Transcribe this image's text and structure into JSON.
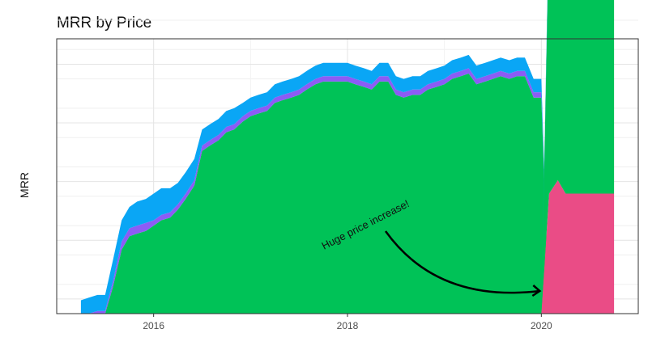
{
  "chart_data": {
    "type": "area",
    "stacked": true,
    "title": "MRR by Price",
    "xlabel": "",
    "ylabel": "MRR",
    "xlim": [
      2015.0,
      2021.0
    ],
    "ylim": [
      0,
      100
    ],
    "x_ticks": [
      2016,
      2018,
      2020
    ],
    "y_ticks_labeled": false,
    "grid": true,
    "legend": "none",
    "annotation": {
      "text": "Huge price increase!",
      "arrow_to": [
        2020.0,
        10
      ]
    },
    "x": [
      2015.25,
      2015.33,
      2015.42,
      2015.5,
      2015.58,
      2015.67,
      2015.75,
      2015.83,
      2015.92,
      2016.0,
      2016.08,
      2016.17,
      2016.25,
      2016.33,
      2016.42,
      2016.5,
      2016.58,
      2016.67,
      2016.75,
      2016.83,
      2016.92,
      2017.0,
      2017.08,
      2017.17,
      2017.25,
      2017.33,
      2017.42,
      2017.5,
      2017.58,
      2017.67,
      2017.75,
      2017.83,
      2017.92,
      2018.0,
      2018.08,
      2018.17,
      2018.25,
      2018.33,
      2018.42,
      2018.5,
      2018.58,
      2018.67,
      2018.75,
      2018.83,
      2018.92,
      2019.0,
      2019.08,
      2019.17,
      2019.25,
      2019.33,
      2019.42,
      2019.5,
      2019.58,
      2019.67,
      2019.75,
      2019.83,
      2019.92,
      2020.0,
      2020.08,
      2020.17,
      2020.25,
      2020.33,
      2020.42,
      2020.5,
      2020.58,
      2020.67,
      2020.75
    ],
    "series": [
      {
        "color": "#ea4c86",
        "values": [
          0,
          0,
          0,
          0,
          0,
          0,
          0,
          0,
          0,
          0,
          0,
          0,
          0,
          0,
          0,
          0,
          0,
          0,
          0,
          0,
          0,
          0,
          0,
          0,
          0,
          0,
          0,
          0,
          0,
          0,
          0,
          0,
          0,
          0,
          0,
          0,
          0,
          0,
          0,
          0,
          0,
          0,
          0,
          0,
          0,
          0,
          0,
          0,
          0,
          0,
          0,
          0,
          0,
          0,
          0,
          0,
          0,
          0,
          0,
          0,
          0,
          0,
          0,
          0,
          0,
          0,
          0
        ]
      },
      {
        "color": "#00c257",
        "values": [
          0,
          0,
          0,
          0,
          10,
          24,
          29,
          30,
          31,
          33,
          35,
          36,
          39,
          43,
          48,
          61,
          63,
          65,
          68,
          69,
          72,
          74,
          75,
          76,
          79,
          80,
          81,
          82,
          84,
          86,
          87,
          87,
          87,
          87,
          86,
          85,
          84,
          87,
          87,
          82,
          81,
          82,
          82,
          84,
          85,
          86,
          88,
          89,
          90,
          86,
          87,
          88,
          89,
          88,
          89,
          89,
          81,
          81,
          0,
          0,
          0,
          0,
          0,
          0,
          0,
          0,
          0
        ]
      },
      {
        "color": "#8c5cf5",
        "values": [
          0,
          0,
          1,
          1,
          2,
          3,
          3,
          3,
          3,
          2,
          2,
          2,
          2,
          2,
          2,
          2,
          2,
          2,
          2,
          2,
          2,
          2,
          2,
          2,
          2,
          2,
          2,
          2,
          2,
          2,
          2,
          2,
          2,
          2,
          2,
          2,
          2,
          2,
          2,
          2,
          2,
          2,
          2,
          2,
          2,
          2,
          2,
          2,
          2,
          2,
          2,
          2,
          2,
          2,
          2,
          2,
          2,
          2,
          0,
          0,
          0,
          0,
          0,
          0,
          0,
          0,
          0
        ]
      },
      {
        "color": "#0aa6f5",
        "values": [
          5,
          6,
          6,
          6,
          8,
          8,
          8,
          9,
          9,
          10,
          10,
          9,
          8,
          8,
          8,
          6,
          6,
          6,
          6,
          6,
          5,
          5,
          5,
          5,
          5,
          5,
          5,
          5,
          5,
          5,
          5,
          5,
          5,
          5,
          5,
          5,
          5,
          5,
          5,
          5,
          5,
          5,
          5,
          5,
          5,
          5,
          5,
          5,
          5,
          5,
          5,
          5,
          5,
          5,
          5,
          5,
          5,
          5,
          0,
          0,
          0,
          0,
          0,
          0,
          0,
          0,
          0
        ]
      }
    ],
    "post_increase": {
      "x": [
        2020.0,
        2020.08,
        2020.17,
        2020.25,
        2020.33,
        2020.42,
        2020.5,
        2020.58,
        2020.67,
        2020.75
      ],
      "series": [
        {
          "color": "#ea4c86",
          "values": [
            0,
            45,
            50,
            45,
            45,
            45,
            45,
            45,
            45,
            45
          ]
        },
        {
          "color": "#00c257",
          "values": [
            0,
            102,
            99,
            97,
            96,
            98,
            100,
            100,
            100,
            97
          ]
        },
        {
          "color": "#8c5cf5",
          "values": [
            0,
            1,
            1,
            1,
            1,
            1,
            1,
            1,
            1,
            1
          ]
        },
        {
          "color": "#0aa6f5",
          "values": [
            0,
            4,
            5,
            4,
            5,
            4,
            4,
            5,
            5,
            3
          ]
        }
      ]
    }
  }
}
